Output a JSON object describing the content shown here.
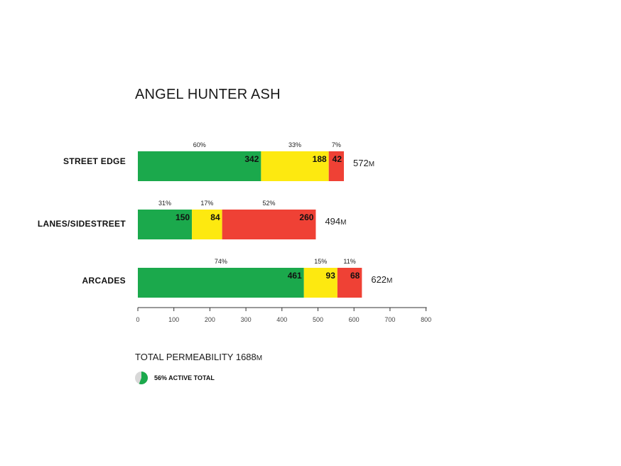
{
  "chart_data": {
    "type": "bar",
    "stacked": true,
    "orientation": "horizontal",
    "title": "ANGEL HUNTER ASH",
    "categories": [
      "STREET EDGE",
      "LANES/SIDESTREET",
      "ARCADES"
    ],
    "series": [
      {
        "color": "#1ba94c",
        "values": [
          342,
          150,
          461
        ],
        "percent_labels": [
          "60%",
          "31%",
          "74%"
        ]
      },
      {
        "color": "#fde910",
        "values": [
          188,
          84,
          93
        ],
        "percent_labels": [
          "33%",
          "17%",
          "15%"
        ]
      },
      {
        "color": "#ef4135",
        "values": [
          42,
          260,
          68
        ],
        "percent_labels": [
          "7%",
          "52%",
          "11%"
        ]
      }
    ],
    "totals": [
      "572",
      "494",
      "622"
    ],
    "total_unit": "M",
    "x_ticks": [
      0,
      100,
      200,
      300,
      400,
      500,
      600,
      700,
      800
    ],
    "xlim": [
      0,
      800
    ],
    "grid": false,
    "footer": {
      "total_label": "TOTAL PERMEABILITY 1688",
      "total_unit": "M",
      "legend_label": "56% ACTIVE TOTAL",
      "active_fraction": 0.56,
      "legend_colors": {
        "active": "#1ba94c",
        "inactive": "#d8d8d8"
      }
    }
  }
}
